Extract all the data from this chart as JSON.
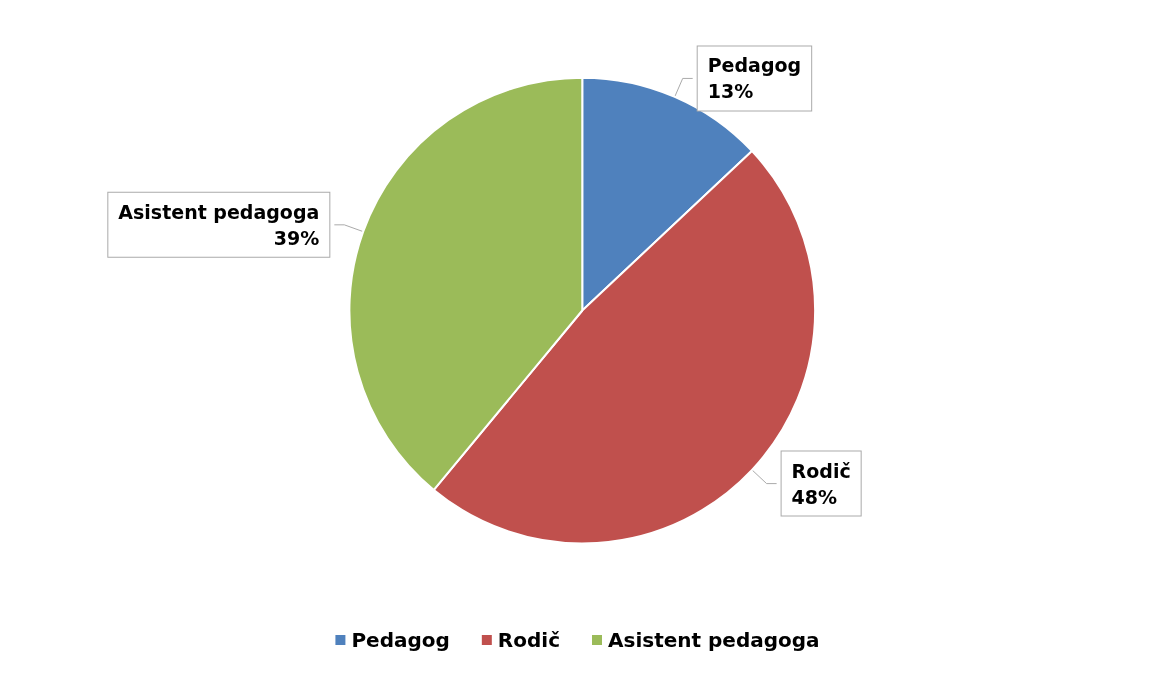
{
  "chart_data": {
    "type": "pie",
    "categories": [
      "Pedagog",
      "Rodič",
      "Asistent pedagoga"
    ],
    "values": [
      13,
      48,
      39
    ],
    "value_labels": [
      "13%",
      "48%",
      "39%"
    ],
    "colors": [
      "#4f81bd",
      "#c0504d",
      "#9bbb59"
    ],
    "legend": "bottom"
  }
}
